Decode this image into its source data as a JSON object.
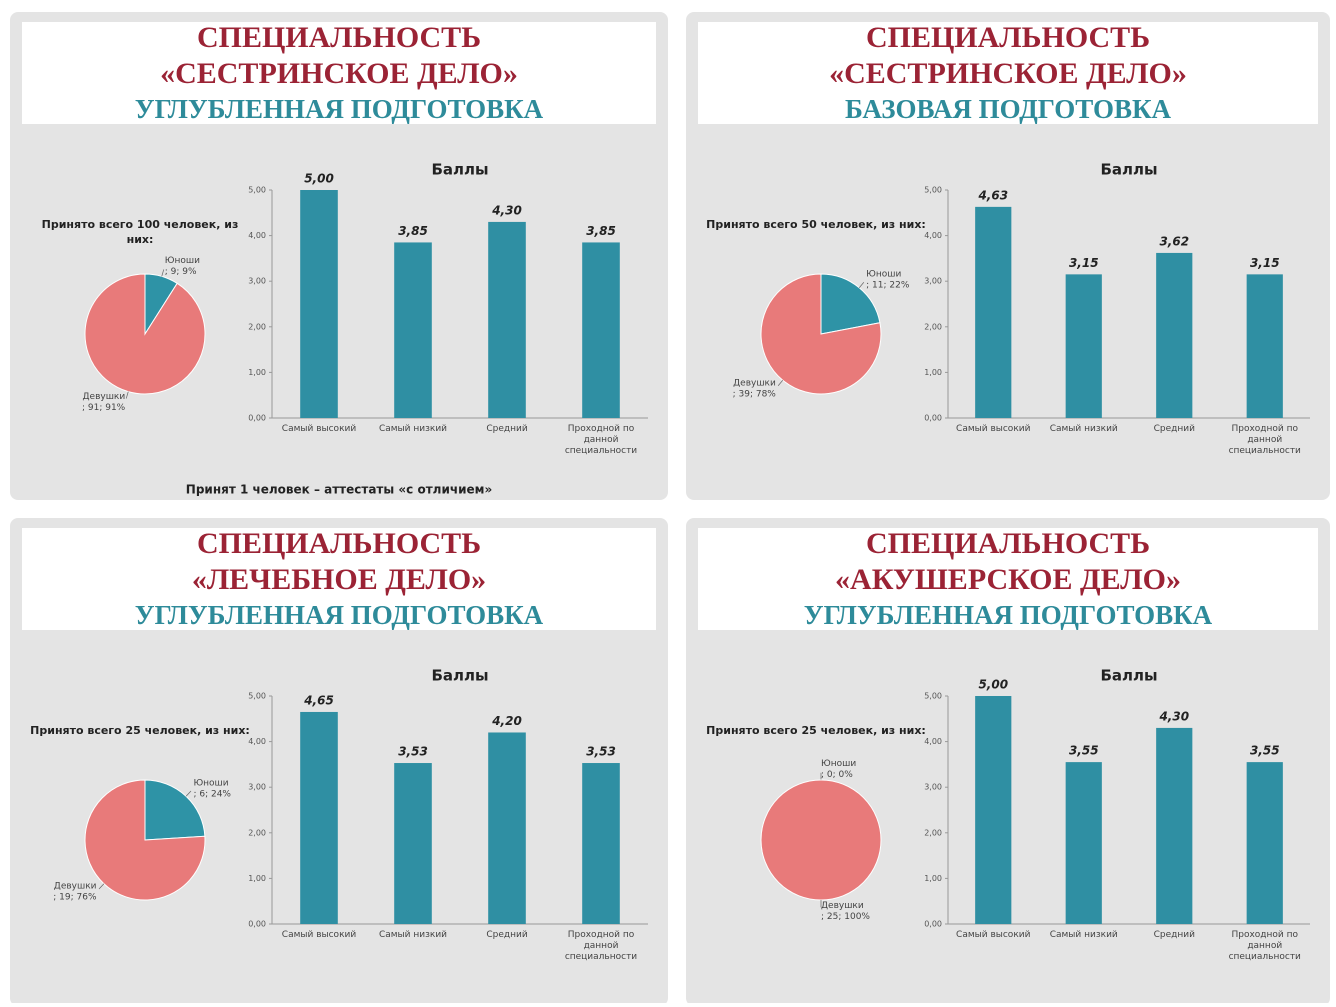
{
  "slides": [
    {
      "title": [
        "СПЕЦИАЛЬНОСТЬ",
        "«СЕСТРИНСКОЕ ДЕЛО»"
      ],
      "subtitle": "УГЛУБЛЕННАЯ ПОДГОТОВКА",
      "caption": "Принят 1 человек – аттестаты «с отличием»",
      "chart_data": [
        {
          "type": "pie",
          "title": "Принято всего 100 человек, из них:",
          "categories": [
            "Юноши",
            "Девушки"
          ],
          "values": [
            9,
            91
          ],
          "value_labels": [
            "; 9; 9%",
            "; 91; 91%"
          ],
          "colors": [
            "#2e93a6",
            "#e87a7a"
          ]
        },
        {
          "type": "bar",
          "title": "Баллы",
          "categories": [
            "Самый высокий",
            "Самый низкий",
            "Средний",
            "Проходной по данной специальности"
          ],
          "values": [
            5.0,
            3.85,
            4.3,
            3.85
          ],
          "value_labels": [
            "5,00",
            "3,85",
            "4,30",
            "3,85"
          ],
          "color": "#2f8fa3",
          "ylim": [
            0,
            5
          ],
          "yticks": [
            {
              "value": 0,
              "label": "0,00"
            },
            {
              "value": 1,
              "label": "1,00"
            },
            {
              "value": 2,
              "label": "2,00"
            },
            {
              "value": 3,
              "label": "3,00"
            },
            {
              "value": 4,
              "label": "4,00"
            },
            {
              "value": 5,
              "label": "5,00"
            }
          ]
        }
      ]
    },
    {
      "title": [
        "СПЕЦИАЛЬНОСТЬ",
        "«СЕСТРИНСКОЕ ДЕЛО»"
      ],
      "subtitle": "БАЗОВАЯ ПОДГОТОВКА",
      "chart_data": [
        {
          "type": "pie",
          "title": "Принято всего 50 человек, из них:",
          "categories": [
            "Юноши",
            "Девушки"
          ],
          "values": [
            11,
            39
          ],
          "value_labels": [
            "; 11; 22%",
            "; 39; 78%"
          ],
          "colors": [
            "#2e93a6",
            "#e87a7a"
          ]
        },
        {
          "type": "bar",
          "title": "Баллы",
          "categories": [
            "Самый высокий",
            "Самый низкий",
            "Средний",
            "Проходной по данной специальности"
          ],
          "values": [
            4.63,
            3.15,
            3.62,
            3.15
          ],
          "value_labels": [
            "4,63",
            "3,15",
            "3,62",
            "3,15"
          ],
          "color": "#2f8fa3",
          "ylim": [
            0,
            5
          ],
          "yticks": [
            {
              "value": 0,
              "label": "0,00"
            },
            {
              "value": 1,
              "label": "1,00"
            },
            {
              "value": 2,
              "label": "2,00"
            },
            {
              "value": 3,
              "label": "3,00"
            },
            {
              "value": 4,
              "label": "4,00"
            },
            {
              "value": 5,
              "label": "5,00"
            }
          ]
        }
      ]
    },
    {
      "title": [
        "СПЕЦИАЛЬНОСТЬ",
        "«ЛЕЧЕБНОЕ ДЕЛО»"
      ],
      "subtitle": "УГЛУБЛЕННАЯ ПОДГОТОВКА",
      "chart_data": [
        {
          "type": "pie",
          "title": "Принято всего 25 человек, из них:",
          "categories": [
            "Юноши",
            "Девушки"
          ],
          "values": [
            6,
            19
          ],
          "value_labels": [
            "; 6; 24%",
            "; 19; 76%"
          ],
          "colors": [
            "#2e93a6",
            "#e87a7a"
          ]
        },
        {
          "type": "bar",
          "title": "Баллы",
          "categories": [
            "Самый высокий",
            "Самый низкий",
            "Средний",
            "Проходной по данной специальности"
          ],
          "values": [
            4.65,
            3.53,
            4.2,
            3.53
          ],
          "value_labels": [
            "4,65",
            "3,53",
            "4,20",
            "3,53"
          ],
          "color": "#2f8fa3",
          "ylim": [
            0,
            5
          ],
          "yticks": [
            {
              "value": 0,
              "label": "0,00"
            },
            {
              "value": 1,
              "label": "1,00"
            },
            {
              "value": 2,
              "label": "2,00"
            },
            {
              "value": 3,
              "label": "3,00"
            },
            {
              "value": 4,
              "label": "4,00"
            },
            {
              "value": 5,
              "label": "5,00"
            }
          ]
        }
      ]
    },
    {
      "title": [
        "СПЕЦИАЛЬНОСТЬ",
        "«АКУШЕРСКОЕ ДЕЛО»"
      ],
      "subtitle": "УГЛУБЛЕННАЯ ПОДГОТОВКА",
      "chart_data": [
        {
          "type": "pie",
          "title": "Принято всего 25 человек, из них:",
          "categories": [
            "Юноши",
            "Девушки"
          ],
          "values": [
            0,
            25
          ],
          "value_labels": [
            "; 0; 0%",
            "; 25; 100%"
          ],
          "colors": [
            "#2e93a6",
            "#e87a7a"
          ]
        },
        {
          "type": "bar",
          "title": "Баллы",
          "categories": [
            "Самый высокий",
            "Самый низкий",
            "Средний",
            "Проходной по данной специальности"
          ],
          "values": [
            5.0,
            3.55,
            4.3,
            3.55
          ],
          "value_labels": [
            "5,00",
            "3,55",
            "4,30",
            "3,55"
          ],
          "color": "#2f8fa3",
          "ylim": [
            0,
            5
          ],
          "yticks": [
            {
              "value": 0,
              "label": "0,00"
            },
            {
              "value": 1,
              "label": "1,00"
            },
            {
              "value": 2,
              "label": "2,00"
            },
            {
              "value": 3,
              "label": "3,00"
            },
            {
              "value": 4,
              "label": "4,00"
            },
            {
              "value": 5,
              "label": "5,00"
            }
          ]
        }
      ]
    }
  ]
}
